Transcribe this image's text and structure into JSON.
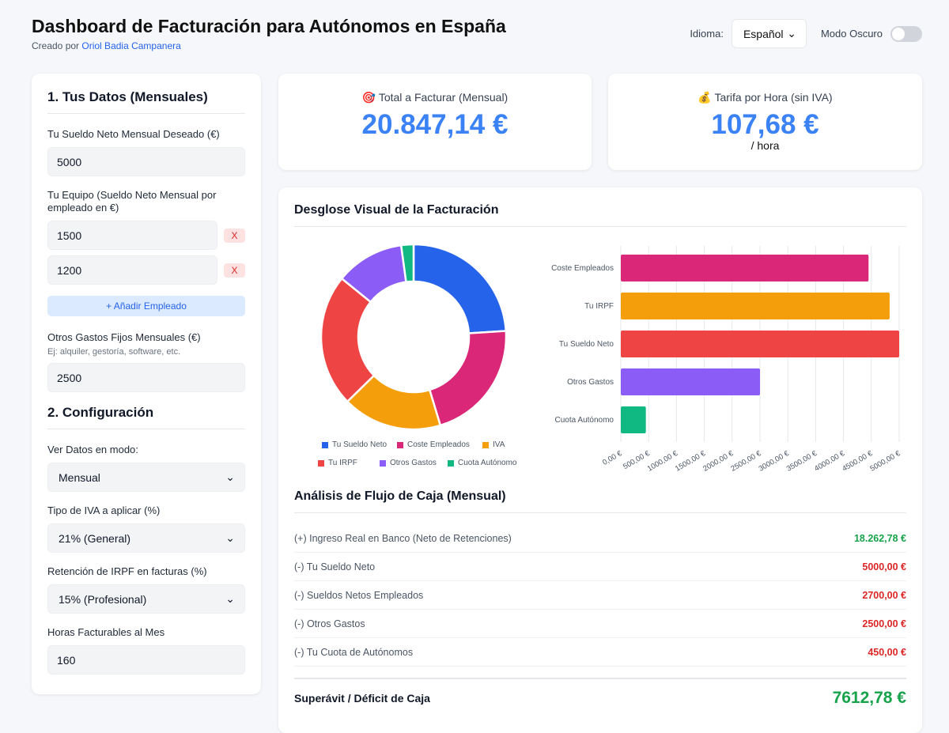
{
  "header": {
    "title": "Dashboard de Facturación para Autónomos en España",
    "created_prefix": "Creado por",
    "author": "Oriol Badia Campanera",
    "language_label": "Idioma:",
    "language_value": "Español",
    "dark_mode_label": "Modo Oscuro",
    "dark_mode_on": false
  },
  "form": {
    "section1": "1. Tus Datos (Mensuales)",
    "salary_label": "Tu Sueldo Neto Mensual Deseado (€)",
    "salary_value": "5000",
    "team_label": "Tu Equipo (Sueldo Neto Mensual por empleado en €)",
    "employees": [
      {
        "value": "1500",
        "remove": "X"
      },
      {
        "value": "1200",
        "remove": "X"
      }
    ],
    "add_employee": "+ Añadir Empleado",
    "other_label": "Otros Gastos Fijos Mensuales (€)",
    "other_hint": "Ej: alquiler, gestoría, software, etc.",
    "other_value": "2500",
    "section2": "2. Configuración",
    "mode_label": "Ver Datos en modo:",
    "mode_value": "Mensual",
    "iva_label": "Tipo de IVA a aplicar (%)",
    "iva_value": "21% (General)",
    "irpf_label": "Retención de IRPF en facturas (%)",
    "irpf_value": "15% (Profesional)",
    "hours_label": "Horas Facturables al Mes",
    "hours_value": "160"
  },
  "kpis": {
    "total": {
      "icon": "🎯",
      "label": "Total a Facturar (Mensual)",
      "value": "20.847,14 €"
    },
    "rate": {
      "icon": "💰",
      "label": "Tarifa por Hora (sin IVA)",
      "value": "107,68 €",
      "unit": "/ hora"
    }
  },
  "visual_title": "Desglose Visual de la Facturación",
  "chart_data": [
    {
      "type": "pie",
      "variant": "donut",
      "categories": [
        "Tu Sueldo Neto",
        "Coste Empleados",
        "IVA",
        "Tu IRPF",
        "Otros Gastos",
        "Cuota Autónomo"
      ],
      "values": [
        5000,
        4450,
        3618,
        4829,
        2500,
        450
      ],
      "colors": [
        "#2563eb",
        "#db2777",
        "#f59e0b",
        "#ef4444",
        "#8b5cf6",
        "#10b981"
      ],
      "legend": "bottom"
    },
    {
      "type": "bar",
      "orientation": "horizontal",
      "categories": [
        "Coste Empleados",
        "Tu IRPF",
        "Tu Sueldo Neto",
        "Otros Gastos",
        "Cuota Autónomo"
      ],
      "values": [
        4450,
        4829,
        5000,
        2500,
        450
      ],
      "colors": [
        "#db2777",
        "#f59e0b",
        "#ef4444",
        "#8b5cf6",
        "#10b981"
      ],
      "xlim": [
        0,
        5000
      ],
      "xticks": [
        "0,00 €",
        "500,00 €",
        "1000,00 €",
        "1500,00 €",
        "2000,00 €",
        "2500,00 €",
        "3000,00 €",
        "3500,00 €",
        "4000,00 €",
        "4500,00 €",
        "5000,00 €"
      ],
      "grid": true
    }
  ],
  "cashflow": {
    "title": "Análisis de Flujo de Caja (Mensual)",
    "rows": [
      {
        "label": "(+) Ingreso Real en Banco (Neto de Retenciones)",
        "value": "18.262,78 €",
        "sign": "pos"
      },
      {
        "label": "(-) Tu Sueldo Neto",
        "value": "5000,00 €",
        "sign": "neg"
      },
      {
        "label": "(-) Sueldos Netos Empleados",
        "value": "2700,00 €",
        "sign": "neg"
      },
      {
        "label": "(-) Otros Gastos",
        "value": "2500,00 €",
        "sign": "neg"
      },
      {
        "label": "(-) Tu Cuota de Autónomos",
        "value": "450,00 €",
        "sign": "neg"
      }
    ],
    "total_label": "Superávit / Déficit de Caja",
    "total_value": "7612,78 €"
  }
}
